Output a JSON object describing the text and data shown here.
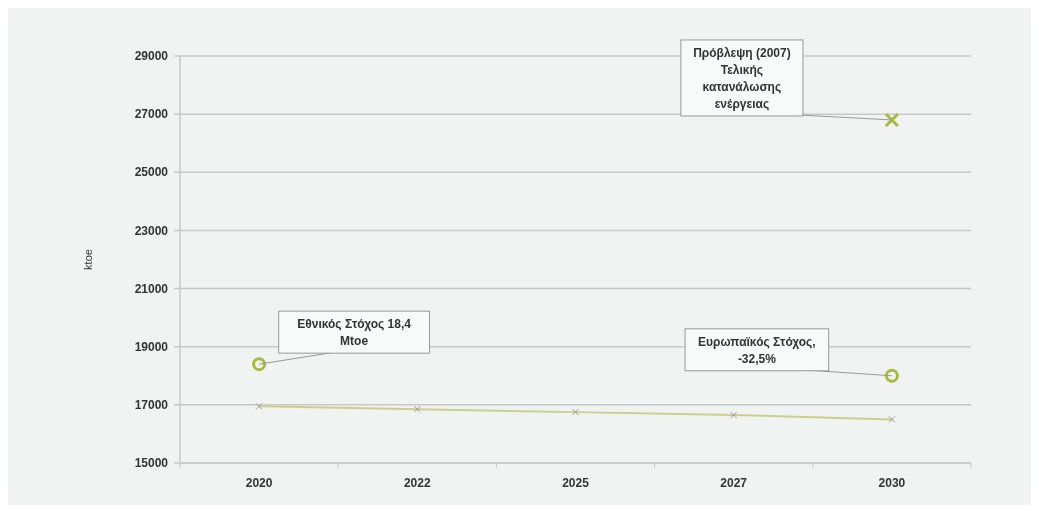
{
  "chart_data": {
    "type": "line",
    "ylabel": "ktoe",
    "categories": [
      "2020",
      "2022",
      "2025",
      "2027",
      "2030"
    ],
    "series": [
      {
        "color": "#c9d08c",
        "marker": "cross",
        "values": [
          16950,
          16850,
          16750,
          16650,
          16500
        ]
      },
      {
        "type": "scatter",
        "color": "#a9ba3c",
        "marker": "circle",
        "values": [
          18400,
          null,
          null,
          null,
          18000
        ]
      },
      {
        "type": "scatter",
        "color": "#a9ba3c",
        "marker": "cross",
        "values": [
          null,
          null,
          null,
          null,
          26800
        ]
      }
    ],
    "ylim": [
      15000,
      29000
    ],
    "yticks": [
      15000,
      17000,
      19000,
      21000,
      23000,
      25000,
      27000,
      29000
    ],
    "grid": "y",
    "annotations": [
      {
        "text": "Εθνικός Στόχος 18,4\nMtoe",
        "x": "2020",
        "y": 18400
      },
      {
        "text": "Ευρωπαϊκός Στόχος,\n-32,5%",
        "x": "2030",
        "y": 18000
      },
      {
        "text": "Πρόβλεψη (2007)\nΤελικής\nκατανάλωσης\nενέργειας",
        "x": "2030",
        "y": 26800
      }
    ]
  }
}
